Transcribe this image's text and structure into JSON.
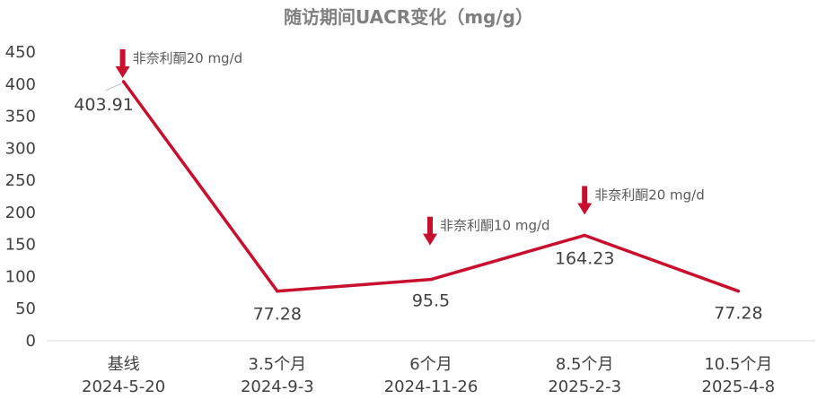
{
  "chart_data": {
    "type": "line",
    "title": "随访期间UACR变化（mg/g）",
    "categories": [
      [
        "基线",
        "2024-5-20"
      ],
      [
        "3.5个月",
        "2024-9-3"
      ],
      [
        "6个月",
        "2024-11-26"
      ],
      [
        "8.5个月",
        "2025-2-3"
      ],
      [
        "10.5个月",
        "2025-4-8"
      ]
    ],
    "series": [
      {
        "values": [
          403.91,
          77.28,
          95.5,
          164.23,
          77.28
        ],
        "labels": [
          "403.91",
          "77.28",
          "95.5",
          "164.23",
          "77.28"
        ]
      }
    ],
    "ylim": [
      0,
      450
    ],
    "yticks": [
      0,
      50,
      100,
      150,
      200,
      250,
      300,
      350,
      400,
      450
    ],
    "grid": false,
    "line_color": "#c8102e",
    "arrow_color": "#c8102e",
    "annotations": [
      {
        "index": 0,
        "text": "非奈利酮20 mg/d"
      },
      {
        "index": 2,
        "text": "非奈利酮10 mg/d"
      },
      {
        "index": 3,
        "text": "非奈利酮20 mg/d"
      }
    ]
  }
}
